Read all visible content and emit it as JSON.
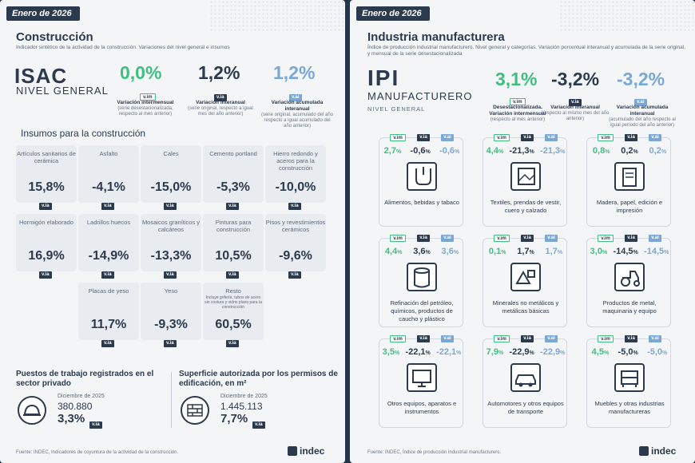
{
  "left": {
    "month": "Enero de 2026",
    "title": "Construcción",
    "subtitle": "Indicador sintético de la actividad de la construcción. Variaciones del nivel general e insumos",
    "index_name": "ISAC",
    "index_sub": "NIVEL GENERAL",
    "headline": [
      {
        "value": "0,0%",
        "badge": "v.im",
        "caption_title": "Variación intermensual",
        "caption_text": "(serie desestacionalizada, respecto al mes anterior)"
      },
      {
        "value": "1,2%",
        "badge": "v.ia",
        "caption_title": "Variación interanual",
        "caption_text": "(serie original, respecto a igual mes del año anterior)"
      },
      {
        "value": "1,2%",
        "badge": "v.ai",
        "caption_title": "Variación acumulada interanual",
        "caption_text": "(serie original, acumulado del año respecto a igual acumulado del año anterior)"
      }
    ],
    "inputs_title": "Insumos para la construcción",
    "inputs": [
      {
        "name": "Artículos sanitarios de cerámica",
        "value": "15,8%",
        "badge": "v.ia"
      },
      {
        "name": "Asfalto",
        "value": "-4,1%",
        "badge": "v.ia"
      },
      {
        "name": "Cales",
        "value": "-15,0%",
        "badge": "v.ia"
      },
      {
        "name": "Cemento portland",
        "value": "-5,3%",
        "badge": "v.ia"
      },
      {
        "name": "Hierro redondo y aceros para la construcción",
        "value": "-10,0%",
        "badge": "v.ia"
      },
      {
        "name": "Hormigón elaborado",
        "value": "16,9%",
        "badge": "v.ia"
      },
      {
        "name": "Ladrillos huecos",
        "value": "-14,9%",
        "badge": "v.ia"
      },
      {
        "name": "Mosaicos graníticos y calcáreos",
        "value": "-13,3%",
        "badge": "v.ia"
      },
      {
        "name": "Pinturas para construcción",
        "value": "10,5%",
        "badge": "v.ia"
      },
      {
        "name": "Pisos y revestimientos cerámicos",
        "value": "-9,6%",
        "badge": "v.ia"
      },
      {
        "name": "Placas de yeso",
        "value": "11,7%",
        "badge": "v.ia"
      },
      {
        "name": "Yeso",
        "value": "-9,3%",
        "badge": "v.ia"
      },
      {
        "name": "Resto",
        "note": "Incluye grifería, tubos de acero sin costura y vidrio plano para la construcción",
        "value": "60,5%",
        "badge": "v.ia"
      }
    ],
    "jobs": {
      "title": "Puestos de trabajo registrados en el sector privado",
      "period": "Diciembre de 2025",
      "count": "380.880",
      "value": "3,3%",
      "badge": "v.ia"
    },
    "area": {
      "title": "Superficie autorizada por los permisos de edificación, en m²",
      "period": "Diciembre de 2025",
      "count": "1.445.113",
      "value": "7,7%",
      "badge": "v.ia"
    },
    "source": "Fuente: INDEC, Indicadores de coyuntura de la actividad de la construcción.",
    "logo": "indec"
  },
  "right": {
    "month": "Enero de 2026",
    "title": "Industria manufacturera",
    "subtitle": "Índice de producción industrial manufacturero. Nivel general y categorías. Variación porcentual interanual y acumulada de la serie original, y mensual de la serie desestacionalizada",
    "index_name": "IPI",
    "index_sub": "MANUFACTURERO",
    "index_sub2": "NIVEL GENERAL",
    "headline": [
      {
        "value": "3,1%",
        "badge": "v.im",
        "caption_title": "Desestacionalizada. Variación intermensual",
        "caption_text": "(respecto al mes anterior)"
      },
      {
        "value": "-3,2%",
        "badge": "v.ia",
        "caption_title": "Variación interanual",
        "caption_text": "(respecto al mismo mes del año anterior)"
      },
      {
        "value": "-3,2%",
        "badge": "v.ai",
        "caption_title": "Variación acumulada interanual",
        "caption_text": "(acumulado del año respecto al igual período del año anterior)"
      }
    ],
    "badges": [
      "v.im",
      "v.ia",
      "v.ai"
    ],
    "categories": [
      {
        "name": "Alimentos, bebidas y tabaco",
        "vim": "2,7",
        "via": "-0,6",
        "vai": "-0,6",
        "icon": "food-icon"
      },
      {
        "name": "Textiles, prendas de vestir, cuero y calzado",
        "vim": "4,4",
        "via": "-21,3",
        "vai": "-21,3",
        "icon": "textile-icon"
      },
      {
        "name": "Madera, papel, edición e impresión",
        "vim": "0,8",
        "via": "0,2",
        "vai": "0,2",
        "icon": "paper-icon"
      },
      {
        "name": "Refinación del petróleo, químicos, productos de caucho y plástico",
        "vim": "4,4",
        "via": "3,6",
        "vai": "3,6",
        "icon": "oil-barrel-icon"
      },
      {
        "name": "Minerales no metálicos y metálicas básicas",
        "vim": "0,1",
        "via": "1,7",
        "vai": "1,7",
        "icon": "minerals-icon"
      },
      {
        "name": "Productos de metal, maquinaria y equipo",
        "vim": "3,0",
        "via": "-14,5",
        "vai": "-14,5",
        "icon": "tractor-icon"
      },
      {
        "name": "Otros equipos, aparatos e instrumentos",
        "vim": "3,5",
        "via": "-22,1",
        "vai": "-22,1",
        "icon": "monitor-icon"
      },
      {
        "name": "Automotores y otros equipos de transporte",
        "vim": "7,9",
        "via": "-22,9",
        "vai": "-22,9",
        "icon": "vehicle-icon"
      },
      {
        "name": "Muebles y otras industrias manufactureras",
        "vim": "4,5",
        "via": "-5,0",
        "vai": "-5,0",
        "icon": "furniture-icon"
      }
    ],
    "pct_sign": "%",
    "source": "Fuente: INDEC, Índice de producción industrial manufacturero.",
    "logo": "indec"
  }
}
